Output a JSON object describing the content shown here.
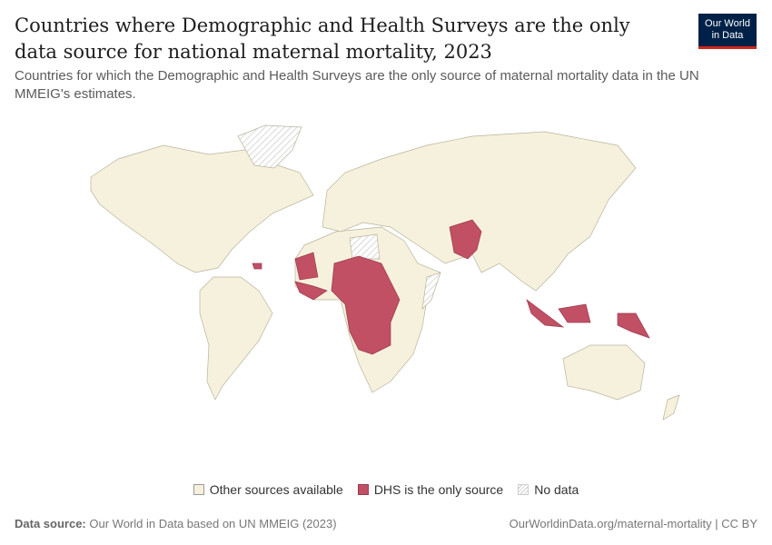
{
  "header": {
    "title": "Countries where Demographic and Health Surveys are the only data source for national maternal mortality, 2023",
    "subtitle": "Countries for which the Demographic and Health Surveys are the only source of maternal mortality data in the UN MMEIG's estimates.",
    "logo": [
      "Our World",
      "in Data"
    ]
  },
  "legend": [
    {
      "label": "Other sources available",
      "color": "#f6f1dc"
    },
    {
      "label": "DHS is the only source",
      "color": "#c15065"
    },
    {
      "label": "No data",
      "color": "hatched"
    }
  ],
  "footer": {
    "source_label": "Data source:",
    "source_text": "Our World in Data based on UN MMEIG (2023)",
    "url": "OurWorldinData.org/maternal-mortality | CC BY"
  }
}
